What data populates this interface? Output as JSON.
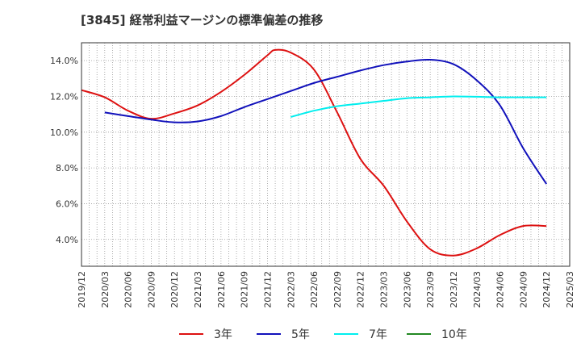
{
  "chart_data": {
    "type": "line",
    "title": "[3845]  経常利益マージンの標準偏差の推移",
    "xlabel": "",
    "ylabel": "",
    "x_ticks": [
      "2019/12",
      "2020/03",
      "2020/06",
      "2020/09",
      "2020/12",
      "2021/03",
      "2021/06",
      "2021/09",
      "2021/12",
      "2022/03",
      "2022/06",
      "2022/09",
      "2022/12",
      "2023/03",
      "2023/06",
      "2023/09",
      "2023/12",
      "2024/03",
      "2024/06",
      "2024/09",
      "2024/12",
      "2025/03"
    ],
    "y_ticks": [
      "4.0%",
      "6.0%",
      "8.0%",
      "10.0%",
      "12.0%",
      "14.0%"
    ],
    "ylim": [
      2.5,
      15.0
    ],
    "grid": true,
    "legend_position": "bottom",
    "series": [
      {
        "name": "3年",
        "color": "#dd1111",
        "x": [
          "2019/12",
          "2020/03",
          "2020/06",
          "2020/09",
          "2020/12",
          "2021/03",
          "2021/06",
          "2021/09",
          "2021/12",
          "2022/01",
          "2022/03",
          "2022/06",
          "2022/09",
          "2022/12",
          "2023/03",
          "2023/06",
          "2023/09",
          "2023/12",
          "2024/03",
          "2024/06",
          "2024/09",
          "2024/12"
        ],
        "values": [
          12.35,
          11.95,
          11.2,
          10.75,
          11.05,
          11.5,
          12.25,
          13.2,
          14.3,
          14.6,
          14.45,
          13.5,
          11.1,
          8.5,
          7.0,
          5.0,
          3.45,
          3.1,
          3.5,
          4.25,
          4.75,
          4.75
        ]
      },
      {
        "name": "5年",
        "color": "#1111bb",
        "x": [
          "2020/03",
          "2020/06",
          "2020/09",
          "2020/12",
          "2021/03",
          "2021/06",
          "2021/09",
          "2021/12",
          "2022/03",
          "2022/06",
          "2022/09",
          "2022/12",
          "2023/03",
          "2023/06",
          "2023/09",
          "2023/12",
          "2024/03",
          "2024/06",
          "2024/09",
          "2024/12"
        ],
        "values": [
          11.1,
          10.9,
          10.7,
          10.55,
          10.6,
          10.9,
          11.4,
          11.85,
          12.3,
          12.75,
          13.1,
          13.45,
          13.75,
          13.95,
          14.05,
          13.8,
          12.9,
          11.5,
          9.1,
          7.1
        ]
      },
      {
        "name": "7年",
        "color": "#00eeee",
        "x": [
          "2022/03",
          "2022/06",
          "2022/09",
          "2022/12",
          "2023/03",
          "2023/06",
          "2023/09",
          "2023/12",
          "2024/03",
          "2024/06",
          "2024/09",
          "2024/12"
        ],
        "values": [
          10.85,
          11.2,
          11.45,
          11.6,
          11.75,
          11.9,
          11.95,
          12.0,
          11.98,
          11.95,
          11.95,
          11.95
        ]
      },
      {
        "name": "10年",
        "color": "#228822",
        "x": [],
        "values": []
      }
    ]
  }
}
